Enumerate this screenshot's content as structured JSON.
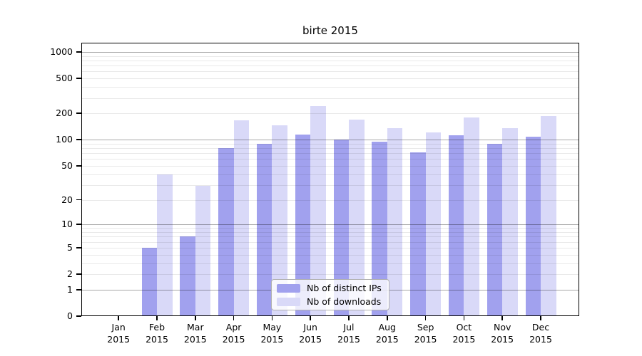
{
  "title": "birte 2015",
  "chart_data": {
    "type": "bar",
    "title": "birte 2015",
    "categories": [
      "Jan 2015",
      "Feb 2015",
      "Mar 2015",
      "Apr 2015",
      "May 2015",
      "Jun 2015",
      "Jul 2015",
      "Aug 2015",
      "Sep 2015",
      "Oct 2015",
      "Nov 2015",
      "Dec 2015"
    ],
    "x_tick_labels": [
      {
        "month": "Jan",
        "year": "2015"
      },
      {
        "month": "Feb",
        "year": "2015"
      },
      {
        "month": "Mar",
        "year": "2015"
      },
      {
        "month": "Apr",
        "year": "2015"
      },
      {
        "month": "May",
        "year": "2015"
      },
      {
        "month": "Jun",
        "year": "2015"
      },
      {
        "month": "Jul",
        "year": "2015"
      },
      {
        "month": "Aug",
        "year": "2015"
      },
      {
        "month": "Sep",
        "year": "2015"
      },
      {
        "month": "Oct",
        "year": "2015"
      },
      {
        "month": "Nov",
        "year": "2015"
      },
      {
        "month": "Dec",
        "year": "2015"
      }
    ],
    "series": [
      {
        "name": "Nb of distinct IPs",
        "color": "#a1a1ee",
        "values": [
          0,
          5,
          7,
          80,
          90,
          115,
          100,
          95,
          72,
          112,
          90,
          108
        ]
      },
      {
        "name": "Nb of downloads",
        "color": "#d9d9f8",
        "values": [
          0,
          40,
          29,
          165,
          145,
          240,
          170,
          135,
          120,
          180,
          135,
          185
        ]
      }
    ],
    "y_axis": {
      "scale": "log1p",
      "tick_labels": [
        "0",
        "1",
        "2",
        "5",
        "10",
        "20",
        "50",
        "100",
        "200",
        "500",
        "1000"
      ],
      "tick_values": [
        0,
        1,
        2,
        5,
        10,
        20,
        50,
        100,
        200,
        500,
        1000
      ]
    },
    "grid": true,
    "legend_position": "lower center"
  }
}
